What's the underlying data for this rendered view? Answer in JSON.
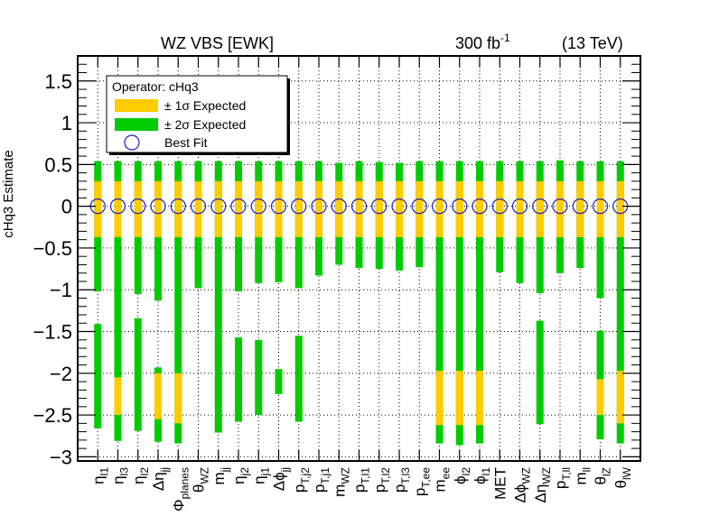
{
  "chart_data": {
    "type": "interval",
    "title_left": "WZ VBS [EWK]",
    "title_lumi": "300 fb",
    "title_lumi_sup": "-1",
    "title_energy": "(13 TeV)",
    "ylabel": "cHq3 Estimate",
    "ylim": [
      -3.05,
      1.8
    ],
    "yticks": [
      "1.5",
      "1",
      "0.5",
      "0",
      "−0.5",
      "−1",
      "−1.5",
      "−2",
      "−2.5",
      "−3"
    ],
    "ytick_values": [
      1.5,
      1,
      0.5,
      0,
      -0.5,
      -1,
      -1.5,
      -2,
      -2.5,
      -3
    ],
    "legend": {
      "header": "Operator: cHq3",
      "entries": [
        "± 1σ Expected",
        "± 2σ Expected",
        "Best Fit"
      ]
    },
    "colors": {
      "one_sigma": "#ffcc00",
      "two_sigma": "#00cc00",
      "best_fit": "#1f1fbf"
    },
    "categories": [
      {
        "base": "η",
        "sub": "l1"
      },
      {
        "base": "η",
        "sub": "l3"
      },
      {
        "base": "η",
        "sub": "l2"
      },
      {
        "base": "Δη",
        "sub": "jj"
      },
      {
        "base": "Φ",
        "sub": "planes"
      },
      {
        "base": "θ",
        "sub": "WZ"
      },
      {
        "base": "m",
        "sub": "jj"
      },
      {
        "base": "η",
        "sub": "j2"
      },
      {
        "base": "η",
        "sub": "j1"
      },
      {
        "base": "Δϕ",
        "sub": "jj"
      },
      {
        "base": "p",
        "sub": "T,j2"
      },
      {
        "base": "p",
        "sub": "T,j1"
      },
      {
        "base": "m",
        "sub": "WZ"
      },
      {
        "base": "p",
        "sub": "T,l1"
      },
      {
        "base": "p",
        "sub": "T,l2"
      },
      {
        "base": "p",
        "sub": "T,l3"
      },
      {
        "base": "p",
        "sub": "T,ee"
      },
      {
        "base": "m",
        "sub": "ee"
      },
      {
        "base": "ϕ",
        "sub": "l2"
      },
      {
        "base": "ϕ",
        "sub": "l1"
      },
      {
        "base": "MET",
        "sub": ""
      },
      {
        "base": "Δϕ",
        "sub": "WZ"
      },
      {
        "base": "Δη",
        "sub": "WZ"
      },
      {
        "base": "p",
        "sub": "T,ll"
      },
      {
        "base": "m",
        "sub": "ll"
      },
      {
        "base": "θ",
        "sub": "lZ"
      },
      {
        "base": "θ",
        "sub": "lW"
      }
    ],
    "best_fit": [
      0,
      0,
      0,
      0,
      0,
      0,
      0,
      0,
      0,
      0,
      0,
      0,
      0,
      0,
      0,
      0,
      0,
      0,
      0,
      0,
      0,
      0,
      0,
      0,
      0,
      0,
      0
    ],
    "one_sigma": [
      [
        [
          -0.37,
          0.3
        ]
      ],
      [
        [
          -0.37,
          0.3
        ],
        [
          -2.5,
          -2.05
        ]
      ],
      [
        [
          -0.37,
          0.3
        ]
      ],
      [
        [
          -0.37,
          0.3
        ],
        [
          -2.55,
          -2.0
        ]
      ],
      [
        [
          -0.37,
          0.3
        ],
        [
          -2.6,
          -2.0
        ]
      ],
      [
        [
          -0.37,
          0.3
        ]
      ],
      [
        [
          -0.37,
          0.3
        ]
      ],
      [
        [
          -0.37,
          0.3
        ]
      ],
      [
        [
          -0.37,
          0.3
        ]
      ],
      [
        [
          -0.37,
          0.3
        ]
      ],
      [
        [
          -0.37,
          0.3
        ]
      ],
      [
        [
          -0.37,
          0.3
        ]
      ],
      [
        [
          -0.37,
          0.3
        ]
      ],
      [
        [
          -0.37,
          0.3
        ]
      ],
      [
        [
          -0.37,
          0.3
        ]
      ],
      [
        [
          -0.37,
          0.3
        ]
      ],
      [
        [
          -0.37,
          0.3
        ]
      ],
      [
        [
          -0.37,
          0.3
        ],
        [
          -2.62,
          -1.97
        ]
      ],
      [
        [
          -0.37,
          0.3
        ],
        [
          -2.62,
          -1.97
        ]
      ],
      [
        [
          -0.37,
          0.3
        ],
        [
          -2.62,
          -1.97
        ]
      ],
      [
        [
          -0.37,
          0.3
        ]
      ],
      [
        [
          -0.37,
          0.3
        ]
      ],
      [
        [
          -0.37,
          0.3
        ]
      ],
      [
        [
          -0.37,
          0.3
        ]
      ],
      [
        [
          -0.37,
          0.3
        ]
      ],
      [
        [
          -0.37,
          0.3
        ],
        [
          -2.5,
          -2.07
        ]
      ],
      [
        [
          -0.37,
          0.3
        ],
        [
          -2.6,
          -1.97
        ]
      ]
    ],
    "two_sigma": [
      [
        [
          -1.02,
          0.54
        ],
        [
          -2.66,
          -1.41
        ]
      ],
      [
        [
          -2.81,
          0.54
        ]
      ],
      [
        [
          -1.05,
          0.54
        ],
        [
          -2.69,
          -1.34
        ]
      ],
      [
        [
          -1.13,
          0.54
        ],
        [
          -2.82,
          -1.93
        ]
      ],
      [
        [
          -2.84,
          0.54
        ]
      ],
      [
        [
          -0.98,
          0.54
        ]
      ],
      [
        [
          -2.71,
          0.54
        ]
      ],
      [
        [
          -1.02,
          0.54
        ],
        [
          -2.58,
          -1.57
        ]
      ],
      [
        [
          -0.92,
          0.54
        ],
        [
          -2.5,
          -1.6
        ]
      ],
      [
        [
          -0.91,
          0.54
        ],
        [
          -2.25,
          -1.95
        ]
      ],
      [
        [
          -0.98,
          0.54
        ],
        [
          -2.58,
          -1.55
        ]
      ],
      [
        [
          -0.83,
          0.54
        ]
      ],
      [
        [
          -0.7,
          0.52
        ]
      ],
      [
        [
          -0.74,
          0.54
        ]
      ],
      [
        [
          -0.75,
          0.53
        ]
      ],
      [
        [
          -0.77,
          0.52
        ]
      ],
      [
        [
          -0.73,
          0.54
        ]
      ],
      [
        [
          -2.84,
          0.54
        ]
      ],
      [
        [
          -2.86,
          0.54
        ]
      ],
      [
        [
          -2.84,
          0.54
        ]
      ],
      [
        [
          -0.79,
          0.54
        ]
      ],
      [
        [
          -0.92,
          0.54
        ]
      ],
      [
        [
          -1.04,
          0.54
        ],
        [
          -2.61,
          -1.37
        ]
      ],
      [
        [
          -0.8,
          0.55
        ]
      ],
      [
        [
          -0.74,
          0.54
        ]
      ],
      [
        [
          -1.1,
          0.54
        ],
        [
          -2.79,
          -1.49
        ]
      ],
      [
        [
          -2.84,
          0.54
        ]
      ]
    ],
    "grid": true
  }
}
